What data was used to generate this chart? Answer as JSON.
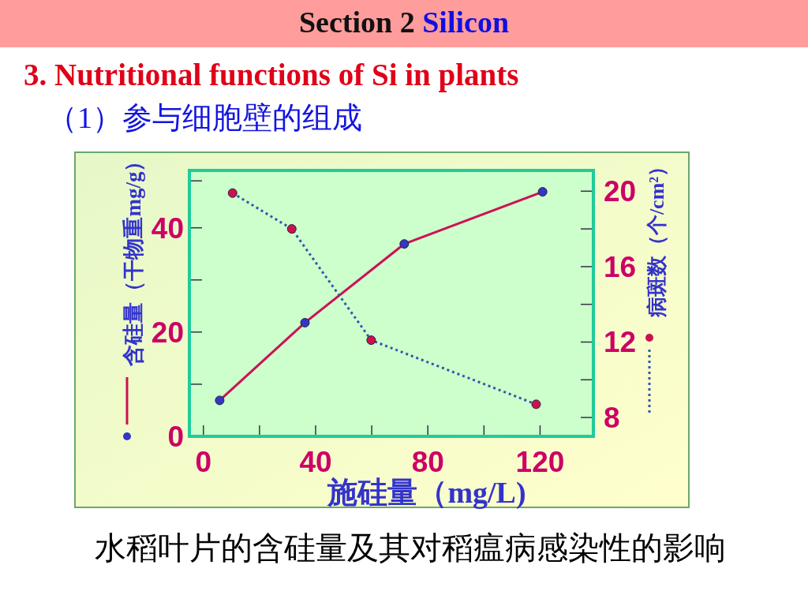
{
  "chart_data": {
    "type": "line",
    "title": "Section 2 Silicon",
    "subtitle": "3. Nutritional functions of Si in plants",
    "annotations": [
      "（1）参与细胞壁的组成",
      "水稻叶片的含硅量及其对稻瘟病感染性的影响"
    ],
    "xlabel": "施硅量（mg/L)",
    "ylabel": "含硅量（干物重mg/g）",
    "y2label": "病斑数（个/cm²）",
    "xlim": [
      -5,
      139
    ],
    "xticks": [
      0,
      {
        "value": 20,
        "label": null
      },
      40,
      {
        "value": 60,
        "label": null
      },
      80,
      {
        "value": 100,
        "label": null
      },
      120
    ],
    "ylim": [
      0,
      51
    ],
    "yticks": [
      0,
      {
        "value": 10,
        "label": null
      },
      20,
      {
        "value": 30,
        "label": null
      },
      40,
      {
        "value": 49,
        "label": null
      }
    ],
    "y2lim": [
      7,
      21.1
    ],
    "y2ticks": [
      8,
      {
        "value": 10,
        "label": null
      },
      12,
      {
        "value": 14,
        "label": null
      },
      16,
      {
        "value": 18,
        "label": null
      },
      20
    ],
    "marker": "circle",
    "series": [
      {
        "type": "line",
        "axis": "y",
        "color": "#cc1155",
        "colors": [
          "#3535c8",
          "#3535c8",
          "#3535c8",
          "#3535c8"
        ],
        "line_style": "solid",
        "x": [
          5.8,
          36.2,
          71.6,
          120.9
        ],
        "values": [
          6.9,
          21.8,
          36.9,
          46.9
        ]
      },
      {
        "type": "line",
        "axis": "y2",
        "color": "#3355aa",
        "colors": [
          "#cc1150",
          "#cc1150",
          "#cc1150",
          "#cc1150"
        ],
        "line_style": "dotted",
        "x": [
          10.4,
          31.5,
          59.8,
          118.6
        ],
        "values": [
          19.9,
          18.0,
          12.1,
          8.7
        ]
      }
    ]
  }
}
